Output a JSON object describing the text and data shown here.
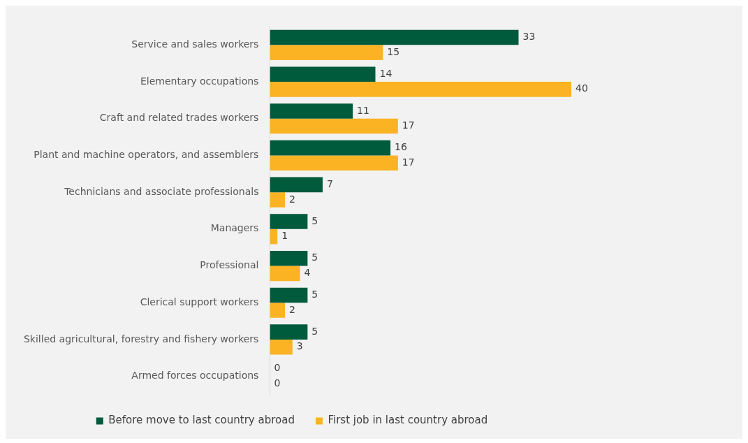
{
  "chart_data": {
    "type": "bar",
    "orientation": "horizontal",
    "categories": [
      "Service and sales workers",
      "Elementary occupations",
      "Craft and related trades workers",
      "Plant and machine operators, and assemblers",
      "Technicians and associate professionals",
      "Managers",
      "Professional",
      "Clerical support workers",
      "Skilled agricultural, forestry and fishery workers",
      "Armed forces occupations"
    ],
    "series": [
      {
        "name": "Before move to last country abroad",
        "color": "#005a3c",
        "values": [
          33,
          14,
          11,
          16,
          7,
          5,
          5,
          5,
          5,
          0
        ]
      },
      {
        "name": "First job in last country abroad",
        "color": "#fbb324",
        "values": [
          15,
          40,
          17,
          17,
          2,
          1,
          4,
          2,
          3,
          0
        ]
      }
    ],
    "data_labels": true,
    "grid": false,
    "legend": "bottom",
    "tick_labels": "y"
  }
}
